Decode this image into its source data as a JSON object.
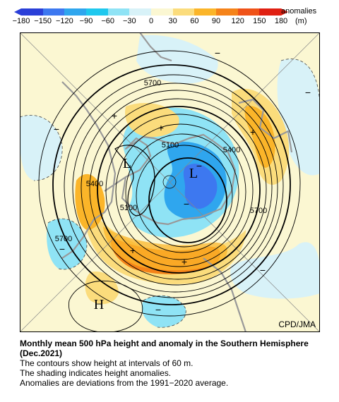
{
  "colorbar": {
    "title": "anomalies",
    "unit": "(m)",
    "ticks": [
      "−180",
      "−150",
      "−120",
      "−90",
      "−60",
      "−30",
      "0",
      "30",
      "60",
      "90",
      "120",
      "150",
      "180"
    ],
    "colors": [
      "#2a3fd8",
      "#3d78f0",
      "#2fa6ee",
      "#1fc8ee",
      "#8fe3f5",
      "#d8f2f8",
      "#fbf7d2",
      "#fbdc7c",
      "#fbb529",
      "#f58319",
      "#ef5218",
      "#e02012"
    ]
  },
  "map": {
    "contour_labels": [
      "5700",
      "5400",
      "5100",
      "5400",
      "5100",
      "5400",
      "5700",
      "5700"
    ],
    "centers": [
      "L",
      "L",
      "H"
    ],
    "anomaly_signs": [
      "+",
      "+",
      "+",
      "+",
      "+",
      "−",
      "−",
      "−",
      "−",
      "−",
      "−",
      "−",
      "−"
    ],
    "credit": "CPD/JMA",
    "colors": {
      "background": "#fbf7d2",
      "coast": "#999999",
      "contour": "#000000"
    }
  },
  "caption": {
    "title": "Monthly mean 500 hPa height and anomaly in the Southern Hemisphere (Dec.2021)",
    "line1": "The contours show height at intervals of 60 m.",
    "line2": "The shading indicates height anomalies.",
    "line3": "Anomalies are deviations from the 1991−2020 average."
  }
}
